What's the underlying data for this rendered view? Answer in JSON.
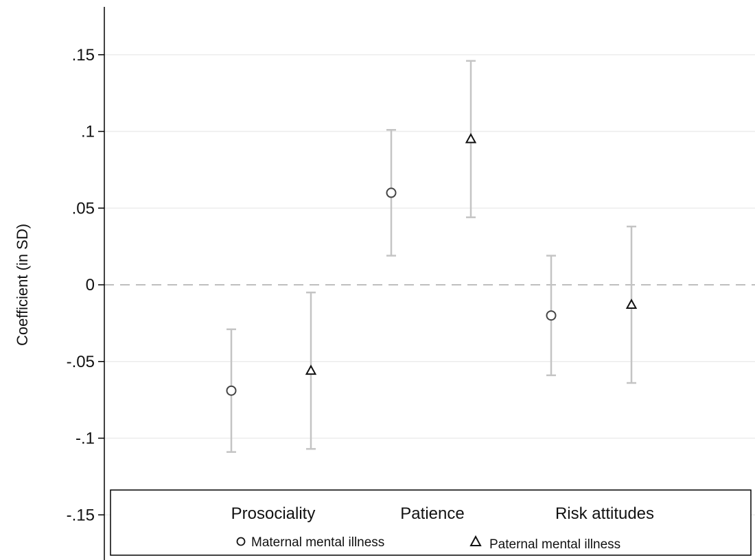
{
  "chart_data": {
    "type": "scatter",
    "title": "",
    "xlabel": "",
    "ylabel": "Coefficient (in SD)",
    "ylim": [
      -0.175,
      0.185
    ],
    "yticks": [
      0.15,
      0.1,
      0.05,
      0,
      -0.05,
      -0.1,
      -0.15
    ],
    "ytick_labels": [
      ".15",
      ".1",
      ".05",
      "0",
      "-.05",
      "-.1",
      "-.15"
    ],
    "grid": true,
    "reference_line": 0,
    "categories": [
      "Prosociality",
      "Patience",
      "Risk attitudes"
    ],
    "series": [
      {
        "name": "Maternal mental illness",
        "marker": "circle",
        "values": [
          -0.069,
          0.06,
          -0.02
        ],
        "ci_low": [
          -0.109,
          0.019,
          -0.059
        ],
        "ci_high": [
          -0.029,
          0.101,
          0.019
        ]
      },
      {
        "name": "Paternal mental illness",
        "marker": "triangle",
        "values": [
          -0.056,
          0.095,
          -0.013
        ],
        "ci_low": [
          -0.107,
          0.044,
          -0.064
        ],
        "ci_high": [
          -0.005,
          0.146,
          0.038
        ]
      }
    ],
    "legend": "bottom",
    "colors": {
      "ci": "#c4c4c4",
      "grid": "#ececec",
      "zero_line": "#a8a8a8",
      "marker": "#444444",
      "axis": "#000000"
    }
  }
}
